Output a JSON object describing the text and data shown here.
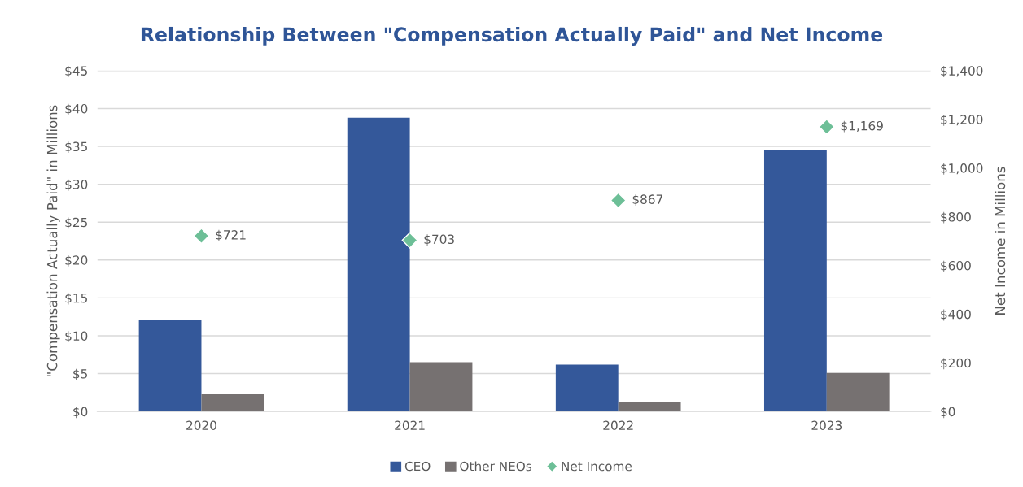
{
  "chart_data": {
    "type": "bar",
    "title": "Relationship Between \"Compensation Actually Paid\" and Net Income",
    "ylabel": "\"Compensation Actually Paid\" in Millions",
    "y2label": "Net Income in Millions",
    "categories": [
      "2020",
      "2021",
      "2022",
      "2023"
    ],
    "series": [
      {
        "name": "CEO",
        "color": "#34589a",
        "values": [
          12.1,
          38.8,
          6.2,
          34.5
        ]
      },
      {
        "name": "Other NEOs",
        "color": "#767171",
        "values": [
          2.3,
          6.5,
          1.2,
          5.1
        ]
      },
      {
        "name": "Net Income",
        "type": "scatter",
        "axis": "y2",
        "marker": "diamond",
        "color": "#6dbf97",
        "values": [
          721,
          703,
          867,
          1169
        ],
        "value_labels": [
          "$721",
          "$703",
          "$867",
          "$1,169"
        ]
      }
    ],
    "ylim": [
      0,
      45
    ],
    "yticks": [
      {
        "value": 0,
        "label": "$0"
      },
      {
        "value": 5,
        "label": "$5"
      },
      {
        "value": 10,
        "label": "$10"
      },
      {
        "value": 15,
        "label": "$15"
      },
      {
        "value": 20,
        "label": "$20"
      },
      {
        "value": 25,
        "label": "$25"
      },
      {
        "value": 30,
        "label": "$30"
      },
      {
        "value": 35,
        "label": "$35"
      },
      {
        "value": 40,
        "label": "$40"
      },
      {
        "value": 45,
        "label": "$45"
      }
    ],
    "y2lim": [
      0,
      1400
    ],
    "y2ticks": [
      {
        "value": 0,
        "label": "$0"
      },
      {
        "value": 200,
        "label": "$200"
      },
      {
        "value": 400,
        "label": "$400"
      },
      {
        "value": 600,
        "label": "$600"
      },
      {
        "value": 800,
        "label": "$800"
      },
      {
        "value": 1000,
        "label": "$1,000"
      },
      {
        "value": 1200,
        "label": "$1,200"
      },
      {
        "value": 1400,
        "label": "$1,400"
      }
    ],
    "grid": "y",
    "legend": "bottom"
  }
}
